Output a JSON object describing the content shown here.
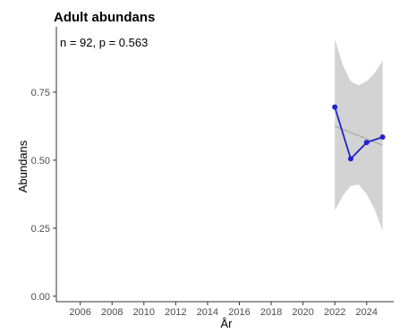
{
  "chart_data": {
    "type": "line",
    "title": "Adult abundans",
    "annotation": "n = 92, p = 0.563",
    "xlabel": "År",
    "ylabel": "Abundans",
    "xlim": [
      2004.5,
      2025.7
    ],
    "ylim": [
      -0.02,
      0.99
    ],
    "x_ticks": [
      2006,
      2008,
      2010,
      2012,
      2014,
      2016,
      2018,
      2020,
      2022,
      2024
    ],
    "y_ticks": [
      0.0,
      0.25,
      0.5,
      0.75
    ],
    "y_tick_labels": [
      "0.00",
      "0.25",
      "0.50",
      "0.75"
    ],
    "grid": false,
    "series": [
      {
        "x": [
          2022,
          2023,
          2024,
          2025
        ],
        "y": [
          0.695,
          0.505,
          0.565,
          0.585
        ]
      }
    ],
    "trend": {
      "x": [
        2022,
        2025
      ],
      "y": [
        0.625,
        0.555
      ]
    },
    "confidence_band": {
      "x": [
        2022,
        2022.5,
        2023,
        2023.5,
        2024,
        2024.5,
        2025
      ],
      "upper": [
        0.945,
        0.85,
        0.79,
        0.775,
        0.79,
        0.82,
        0.865
      ],
      "lower": [
        0.315,
        0.37,
        0.405,
        0.41,
        0.375,
        0.32,
        0.24
      ]
    },
    "colors": {
      "series": "#2222cc",
      "trend": "#a9a9a9",
      "band": "#d3d3d3",
      "axis": "#333333"
    }
  }
}
